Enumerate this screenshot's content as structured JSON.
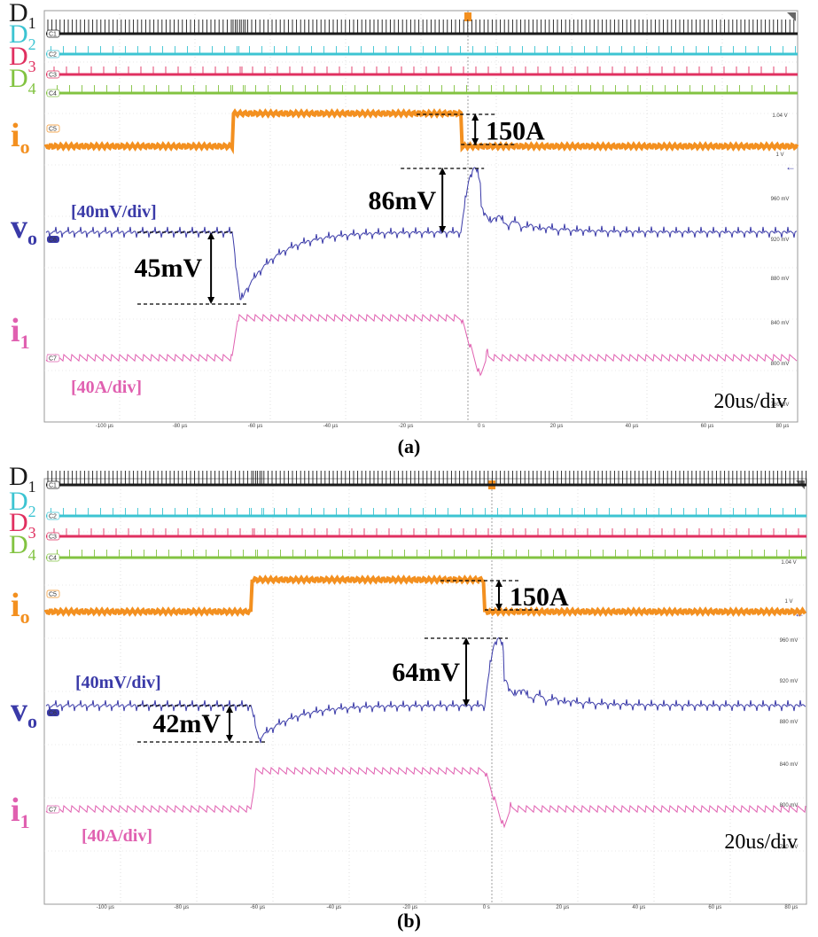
{
  "chart_data": [
    {
      "type": "line",
      "panel_label": "(a)",
      "timebase": "20us/div",
      "x_ticks": [
        "-100 µs",
        "-80 µs",
        "-60 µs",
        "-40 µs",
        "-20 µs",
        "0 s",
        "20 µs",
        "40 µs",
        "60 µs",
        "80 µs"
      ],
      "right_scale": [
        "1.04 V",
        "1 V",
        "960 mV",
        "920 mV",
        "880 mV",
        "840 mV",
        "800 mV",
        "760 mV"
      ],
      "channels": {
        "D1": {
          "label": "D",
          "sub": "1",
          "tag": "C1",
          "color": "#1a1a1a"
        },
        "D2": {
          "label": "D",
          "sub": "2",
          "tag": "C2",
          "color": "#3cc4d2"
        },
        "D3": {
          "label": "D",
          "sub": "3",
          "tag": "C3",
          "color": "#e03060"
        },
        "D4": {
          "label": "D",
          "sub": "4",
          "tag": "C4",
          "color": "#82c341"
        },
        "io": {
          "label": "i",
          "sub": "o",
          "tag": "C5",
          "color": "#f39020"
        },
        "vo": {
          "label": "v",
          "sub": "o",
          "tag": "C6",
          "color": "#3a3aa8",
          "scale": "[40mV/div]"
        },
        "i1": {
          "label": "i",
          "sub": "1",
          "tag": "C7",
          "color": "#e060b0",
          "scale": "[40A/div]"
        }
      },
      "load_step": {
        "step_up_us": -68,
        "step_down_us": -2,
        "magnitude": "150A"
      },
      "annotations": {
        "undershoot": "45mV",
        "overshoot": "86mV",
        "current_step": "150A"
      }
    },
    {
      "type": "line",
      "panel_label": "(b)",
      "timebase": "20us/div",
      "x_ticks": [
        "-100 µs",
        "-80 µs",
        "-60 µs",
        "-40 µs",
        "-20 µs",
        "0 s",
        "20 µs",
        "40 µs",
        "60 µs",
        "80 µs"
      ],
      "right_scale": [
        "1.04 V",
        "1 V",
        "960 mV",
        "920 mV",
        "880 mV",
        "840 mV",
        "800 mV",
        "760 mV"
      ],
      "channels": {
        "D1": {
          "label": "D",
          "sub": "1",
          "tag": "C1",
          "color": "#1a1a1a"
        },
        "D2": {
          "label": "D",
          "sub": "2",
          "tag": "C2",
          "color": "#3cc4d2"
        },
        "D3": {
          "label": "D",
          "sub": "3",
          "tag": "C3",
          "color": "#e03060"
        },
        "D4": {
          "label": "D",
          "sub": "4",
          "tag": "C4",
          "color": "#82c341"
        },
        "io": {
          "label": "i",
          "sub": "o",
          "tag": "C5",
          "color": "#f39020"
        },
        "vo": {
          "label": "v",
          "sub": "o",
          "tag": "C6",
          "color": "#3a3aa8",
          "scale": "[40mV/div]"
        },
        "i1": {
          "label": "i",
          "sub": "1",
          "tag": "C7",
          "color": "#e060b0",
          "scale": "[40A/div]"
        }
      },
      "load_step": {
        "step_up_us": -68,
        "step_down_us": -2,
        "magnitude": "150A"
      },
      "annotations": {
        "undershoot": "42mV",
        "overshoot": "64mV",
        "current_step": "150A"
      }
    }
  ]
}
